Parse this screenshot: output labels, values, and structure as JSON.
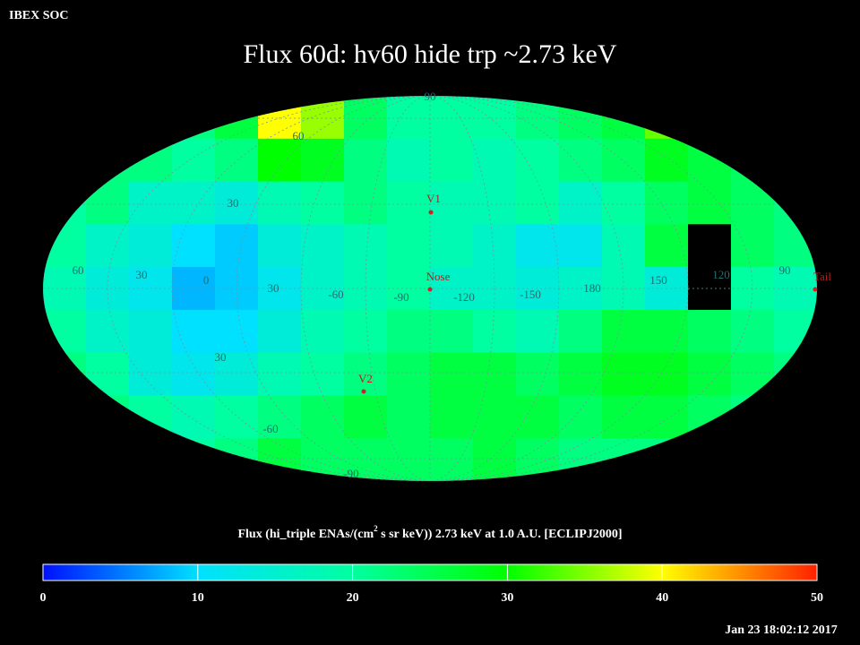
{
  "header": {
    "org": "IBEX SOC",
    "title": "Flux   60d: hv60 hide trp ~2.73 keV",
    "timestamp": "Jan 23 18:02:12 2017"
  },
  "map": {
    "cells": [
      [
        20,
        20,
        20,
        22,
        26,
        40,
        36,
        24,
        20,
        20,
        20,
        22,
        24,
        26,
        34,
        30,
        24,
        22
      ],
      [
        22,
        22,
        22,
        20,
        22,
        30,
        28,
        22,
        18,
        20,
        18,
        20,
        22,
        24,
        28,
        26,
        24,
        22
      ],
      [
        20,
        22,
        16,
        16,
        14,
        18,
        20,
        22,
        20,
        18,
        18,
        20,
        16,
        20,
        24,
        26,
        24,
        22
      ],
      [
        20,
        16,
        14,
        10,
        9,
        14,
        16,
        18,
        20,
        18,
        16,
        12,
        12,
        18,
        26,
        null,
        24,
        22
      ],
      [
        18,
        14,
        12,
        8,
        9,
        12,
        16,
        18,
        20,
        16,
        16,
        14,
        16,
        18,
        14,
        null,
        20,
        18
      ],
      [
        20,
        16,
        14,
        10,
        10,
        14,
        18,
        20,
        22,
        22,
        20,
        18,
        22,
        26,
        26,
        24,
        22,
        20
      ],
      [
        22,
        20,
        14,
        12,
        14,
        18,
        20,
        22,
        24,
        26,
        26,
        24,
        26,
        28,
        28,
        26,
        24,
        22
      ],
      [
        22,
        22,
        20,
        18,
        20,
        22,
        24,
        26,
        24,
        26,
        26,
        26,
        24,
        26,
        26,
        24,
        22,
        22
      ],
      [
        22,
        22,
        22,
        20,
        22,
        26,
        24,
        24,
        24,
        24,
        26,
        24,
        22,
        22,
        22,
        22,
        22,
        22
      ]
    ],
    "grid_labels": [
      "90",
      "60",
      "30",
      "60",
      "30",
      "0",
      "30",
      "-60",
      "-90",
      "-120",
      "-150",
      "180",
      "150",
      "120",
      "90",
      "30",
      "-60",
      "-90"
    ],
    "markers": [
      "V1",
      "Nose",
      "V2",
      "Tail"
    ]
  },
  "colorbar": {
    "title_parts": [
      "Flux (hi_triple ENAs/(cm",
      "2",
      " s sr keV))  2.73 keV at 1.0 A.U. [ECLIPJ2000]"
    ],
    "ticks": [
      0,
      10,
      20,
      30,
      40,
      50
    ],
    "colors": [
      "#0010ff",
      "#00e0ff",
      "#00ffa0",
      "#00ff00",
      "#ffff00",
      "#ff2000"
    ]
  }
}
